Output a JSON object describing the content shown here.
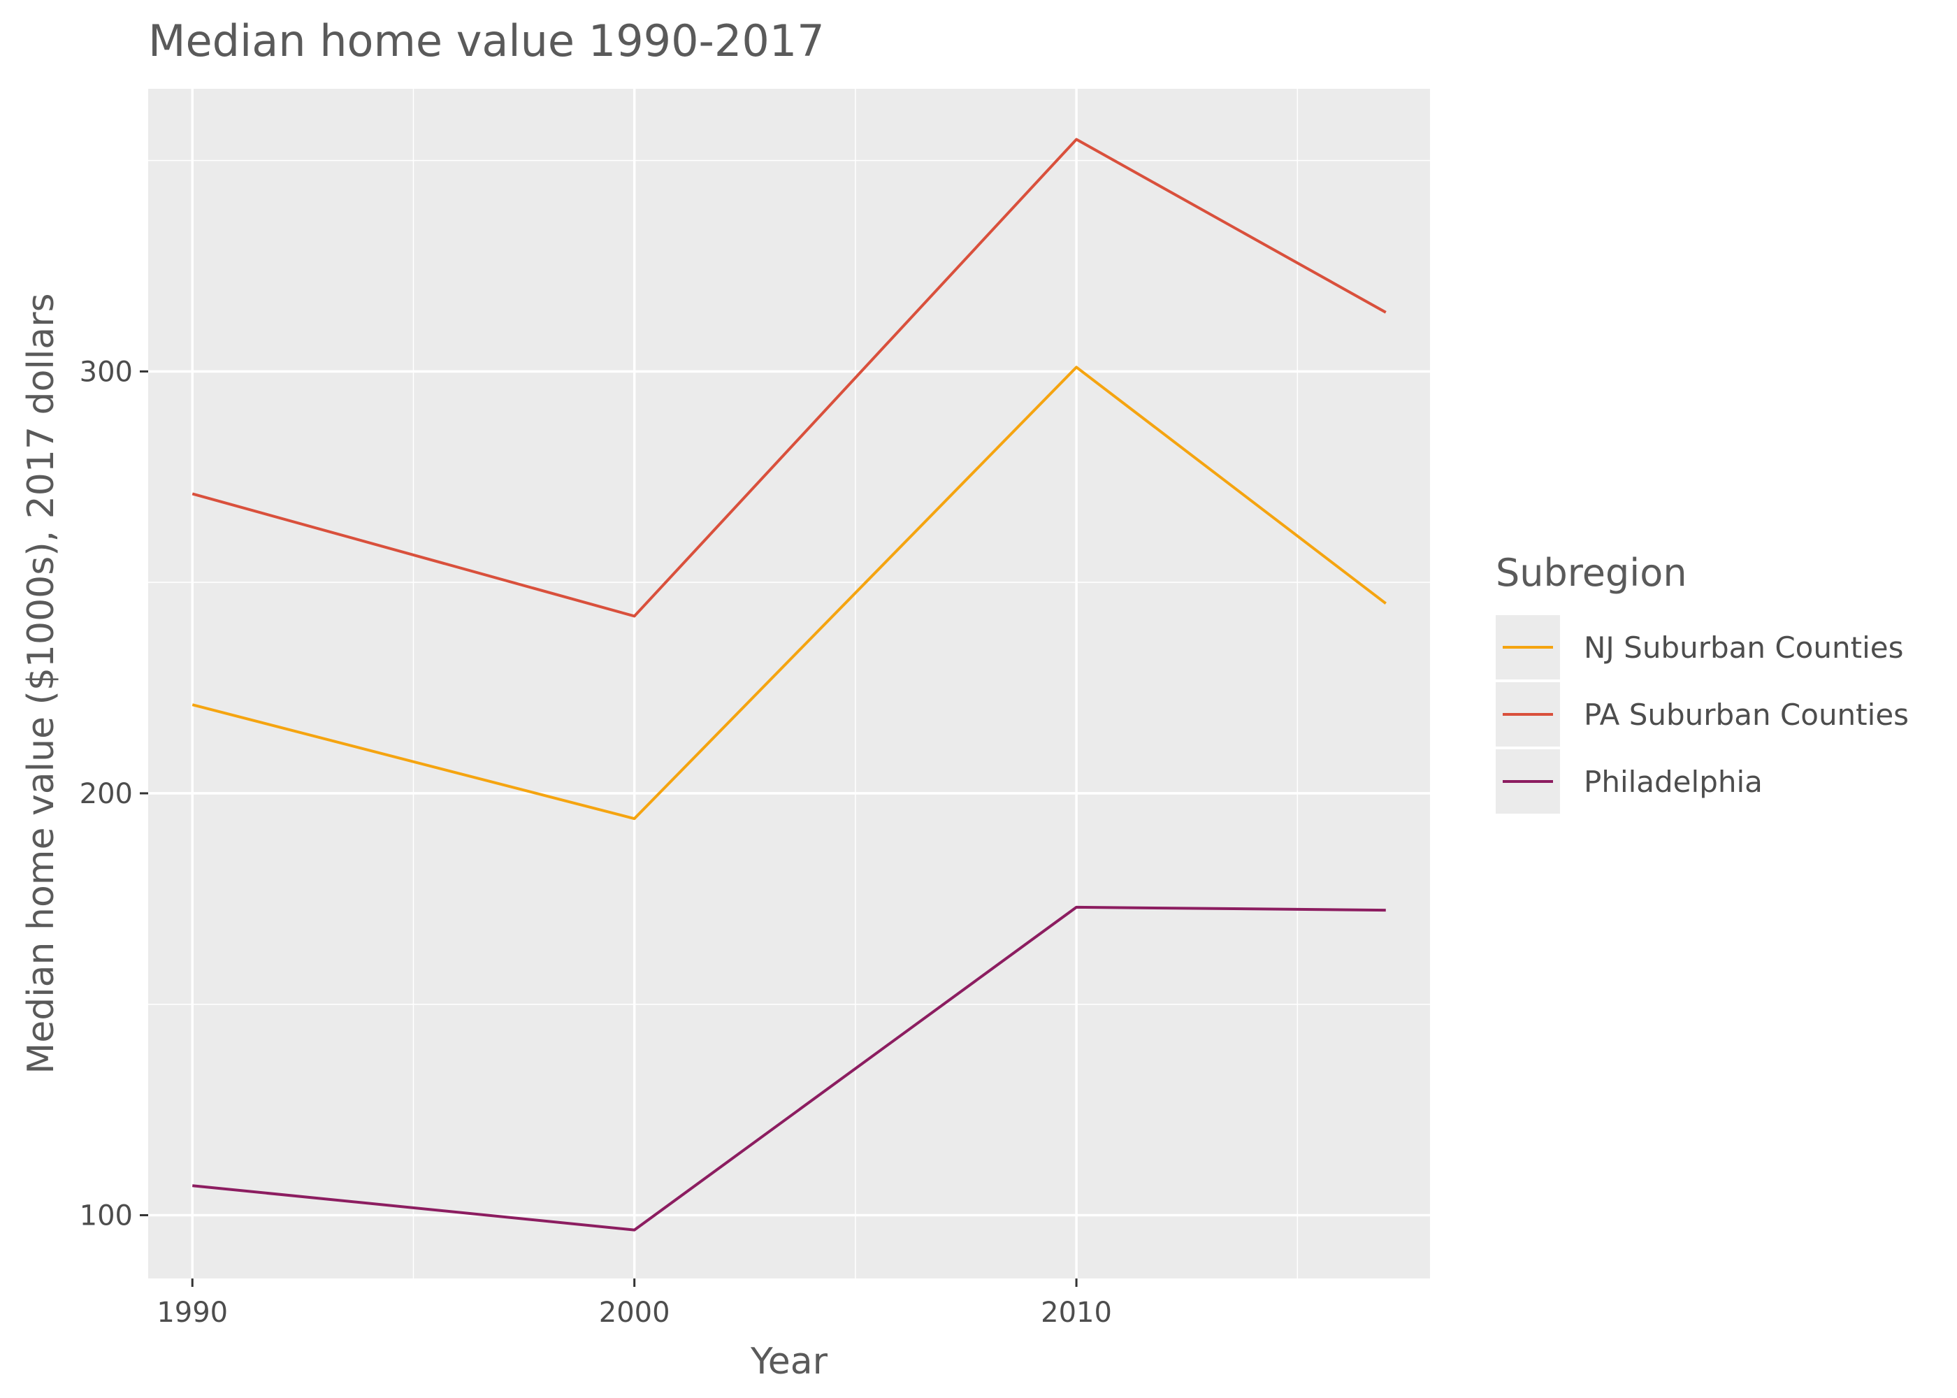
{
  "chart_data": {
    "type": "line",
    "title": "Median home value 1990-2017",
    "xlabel": "Year",
    "ylabel": "Median home value ($1000s), 2017 dollars",
    "x": [
      1990,
      2000,
      2010,
      2017
    ],
    "xlim": [
      1989,
      2018
    ],
    "ylim": [
      85,
      367
    ],
    "x_ticks": [
      1990,
      2000,
      2010
    ],
    "x_tick_labels": [
      "1990",
      "2000",
      "2010"
    ],
    "y_ticks": [
      100,
      200,
      300
    ],
    "y_tick_labels": [
      "100",
      "200",
      "300"
    ],
    "x_minor": [
      1995,
      2005,
      2015
    ],
    "y_minor": [
      150,
      250,
      350
    ],
    "grid": true,
    "legend": {
      "title": "Subregion",
      "position": "right"
    },
    "series": [
      {
        "name": "NJ Suburban Counties",
        "color": "#F5A410",
        "values": [
          221,
          194,
          301,
          245
        ]
      },
      {
        "name": "PA Suburban Counties",
        "color": "#D9503C",
        "values": [
          271,
          242,
          355,
          314
        ]
      },
      {
        "name": "Philadelphia",
        "color": "#8C1D60",
        "values": [
          107,
          96.5,
          173,
          172.3
        ]
      }
    ]
  }
}
